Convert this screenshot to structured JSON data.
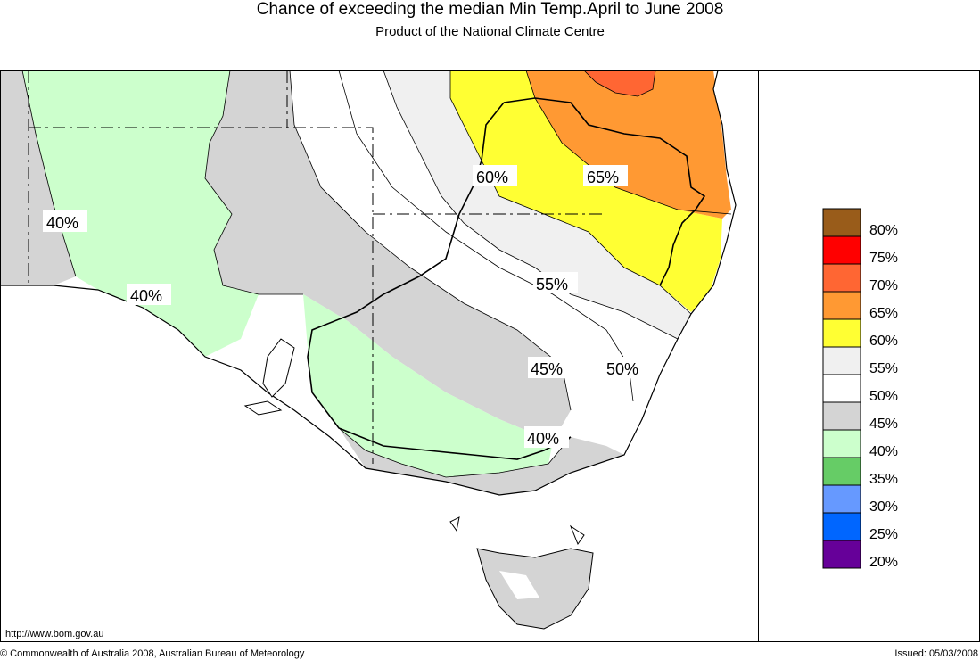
{
  "header": {
    "title": "Chance of exceeding the median Min Temp.April to June 2008",
    "subtitle": "Product of the National Climate Centre"
  },
  "footer": {
    "url": "http://www.bom.gov.au",
    "copyright": "© Commonwealth of Australia 2008, Australian Bureau of Meteorology",
    "issued": "Issued: 05/03/2008"
  },
  "map": {
    "region": "South-eastern Australia",
    "labels": [
      "40%",
      "40%",
      "60%",
      "65%",
      "55%",
      "45%",
      "50%",
      "40%"
    ]
  },
  "legend": {
    "items": [
      {
        "label": "80%",
        "color": "#995c1a"
      },
      {
        "label": "75%",
        "color": "#ff0000"
      },
      {
        "label": "70%",
        "color": "#ff6633"
      },
      {
        "label": "65%",
        "color": "#ff9933"
      },
      {
        "label": "60%",
        "color": "#ffff33"
      },
      {
        "label": "55%",
        "color": "#f0f0f0"
      },
      {
        "label": "50%",
        "color": "#ffffff"
      },
      {
        "label": "45%",
        "color": "#d4d4d4"
      },
      {
        "label": "40%",
        "color": "#ccffcc"
      },
      {
        "label": "35%",
        "color": "#66cc66"
      },
      {
        "label": "30%",
        "color": "#6699ff"
      },
      {
        "label": "25%",
        "color": "#0066ff"
      },
      {
        "label": "20%",
        "color": "#660099"
      }
    ]
  }
}
